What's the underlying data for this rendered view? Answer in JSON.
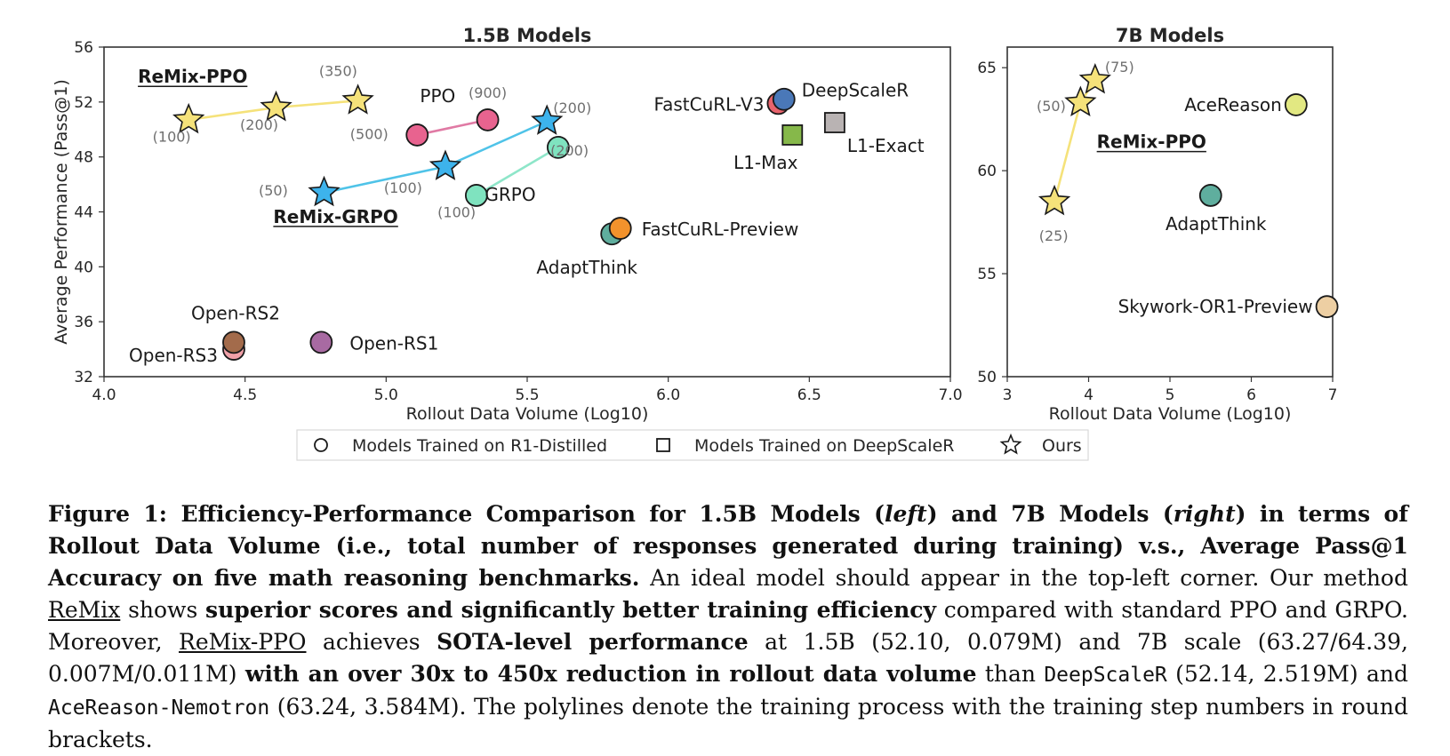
{
  "chart_data": [
    {
      "type": "scatter",
      "title": "1.5B Models",
      "xlabel": "Rollout Data Volume (Log10)",
      "ylabel": "Average Performance (Pass@1)",
      "xlim": [
        4.0,
        7.0
      ],
      "ylim": [
        32,
        56
      ],
      "xticks": [
        "4.0",
        "4.5",
        "5.0",
        "5.5",
        "6.0",
        "6.5",
        "7.0"
      ],
      "yticks": [
        "32",
        "36",
        "40",
        "44",
        "48",
        "52",
        "56"
      ],
      "grid": false,
      "lines": [
        {
          "name": "ReMix-PPO",
          "color": "#f5e27a",
          "points": [
            [
              4.3,
              50.7
            ],
            [
              4.61,
              51.6
            ],
            [
              4.9,
              52.1
            ]
          ]
        },
        {
          "name": "PPO",
          "color": "#e07aa4",
          "points": [
            [
              5.11,
              49.6
            ],
            [
              5.36,
              50.7
            ]
          ]
        },
        {
          "name": "ReMix-GRPO",
          "color": "#4fc3e8",
          "points": [
            [
              4.78,
              45.4
            ],
            [
              5.21,
              47.3
            ],
            [
              5.57,
              50.6
            ]
          ]
        },
        {
          "name": "GRPO",
          "color": "#8ee6c9",
          "points": [
            [
              5.32,
              45.2
            ],
            [
              5.61,
              48.7
            ]
          ]
        }
      ],
      "points": [
        {
          "label": "",
          "x": 4.3,
          "y": 50.7,
          "marker": "star",
          "color": "#f5e27a"
        },
        {
          "label": "",
          "x": 4.61,
          "y": 51.6,
          "marker": "star",
          "color": "#f5e27a"
        },
        {
          "label": "",
          "x": 4.9,
          "y": 52.1,
          "marker": "star",
          "color": "#f5e27a"
        },
        {
          "label": "",
          "x": 4.78,
          "y": 45.4,
          "marker": "star",
          "color": "#3db3ec"
        },
        {
          "label": "",
          "x": 5.21,
          "y": 47.3,
          "marker": "star",
          "color": "#3db3ec"
        },
        {
          "label": "",
          "x": 5.57,
          "y": 50.6,
          "marker": "star",
          "color": "#3db3ec"
        },
        {
          "label": "",
          "x": 5.11,
          "y": 49.6,
          "marker": "circle",
          "color": "#e8638f"
        },
        {
          "label": "",
          "x": 5.36,
          "y": 50.7,
          "marker": "circle",
          "color": "#e8638f"
        },
        {
          "label": "",
          "x": 5.32,
          "y": 45.2,
          "marker": "circle",
          "color": "#7fe3bf"
        },
        {
          "label": "",
          "x": 5.61,
          "y": 48.7,
          "marker": "circle",
          "color": "#7fe3bf"
        },
        {
          "label": "FastCuRL-V3",
          "x": 6.39,
          "y": 51.9,
          "marker": "circle",
          "color": "#e8636c"
        },
        {
          "label": "DeepScaleR",
          "x": 6.41,
          "y": 52.2,
          "marker": "circle",
          "color": "#4a78b8"
        },
        {
          "label": "L1-Max",
          "x": 6.44,
          "y": 49.6,
          "marker": "square",
          "color": "#86b84a"
        },
        {
          "label": "L1-Exact",
          "x": 6.59,
          "y": 50.5,
          "marker": "square",
          "color": "#b9b3b3"
        },
        {
          "label": "AdaptThink",
          "x": 5.8,
          "y": 42.4,
          "marker": "circle",
          "color": "#5fae9e"
        },
        {
          "label": "FastCuRL-Preview",
          "x": 5.83,
          "y": 42.8,
          "marker": "circle",
          "color": "#f2922c"
        },
        {
          "label": "Open-RS3",
          "x": 4.46,
          "y": 34.0,
          "marker": "circle",
          "color": "#f0a0a8"
        },
        {
          "label": "Open-RS2",
          "x": 4.46,
          "y": 34.5,
          "marker": "circle",
          "color": "#a36b4b"
        },
        {
          "label": "Open-RS1",
          "x": 4.77,
          "y": 34.5,
          "marker": "circle",
          "color": "#a86aa2"
        }
      ],
      "annotations": [
        {
          "text": "ReMix-PPO",
          "style": "underline",
          "x": 4.12,
          "y": 53.4
        },
        {
          "text": "PPO",
          "x": 5.12,
          "y": 52.0
        },
        {
          "text": "ReMix-GRPO",
          "style": "underline",
          "x": 4.6,
          "y": 43.2
        },
        {
          "text": "GRPO",
          "x": 5.35,
          "y": 44.8
        },
        {
          "text": "(100)",
          "step": true,
          "x": 4.24,
          "y": 49.1
        },
        {
          "text": "(200)",
          "step": true,
          "x": 4.55,
          "y": 50.0
        },
        {
          "text": "(350)",
          "step": true,
          "x": 4.83,
          "y": 53.9
        },
        {
          "text": "(500)",
          "step": true,
          "x": 4.94,
          "y": 49.3
        },
        {
          "text": "(900)",
          "step": true,
          "x": 5.36,
          "y": 52.3
        },
        {
          "text": "(50)",
          "step": true,
          "x": 4.6,
          "y": 45.2
        },
        {
          "text": "(100)",
          "step": true,
          "x": 5.06,
          "y": 45.4
        },
        {
          "text": "(200)",
          "step": true,
          "x": 5.66,
          "y": 51.2
        },
        {
          "text": "(100)",
          "step": true,
          "x": 5.25,
          "y": 43.6
        },
        {
          "text": "(200)",
          "step": true,
          "x": 5.65,
          "y": 48.1
        }
      ]
    },
    {
      "type": "scatter",
      "title": "7B Models",
      "xlabel": "Rollout Data Volume (Log10)",
      "ylabel": "",
      "xlim": [
        3,
        7
      ],
      "ylim": [
        50,
        66
      ],
      "xticks": [
        "3",
        "4",
        "5",
        "6",
        "7"
      ],
      "yticks": [
        "50",
        "55",
        "60",
        "65"
      ],
      "grid": false,
      "lines": [
        {
          "name": "ReMix-PPO",
          "color": "#f5e27a",
          "points": [
            [
              3.58,
              58.5
            ],
            [
              3.9,
              63.3
            ],
            [
              4.08,
              64.4
            ]
          ]
        }
      ],
      "points": [
        {
          "label": "",
          "x": 3.58,
          "y": 58.5,
          "marker": "star",
          "color": "#f5e27a"
        },
        {
          "label": "",
          "x": 3.9,
          "y": 63.3,
          "marker": "star",
          "color": "#f5e27a"
        },
        {
          "label": "",
          "x": 4.08,
          "y": 64.4,
          "marker": "star",
          "color": "#f5e27a"
        },
        {
          "label": "AceReason",
          "x": 6.55,
          "y": 63.2,
          "marker": "circle",
          "color": "#e2e882"
        },
        {
          "label": "AdaptThink",
          "x": 5.5,
          "y": 58.8,
          "marker": "circle",
          "color": "#5fae9e"
        },
        {
          "label": "Skywork-OR1-Preview",
          "x": 6.93,
          "y": 53.4,
          "marker": "circle",
          "color": "#edcfa3"
        }
      ],
      "annotations": [
        {
          "text": "ReMix-PPO",
          "style": "underline",
          "x": 4.1,
          "y": 61.1
        },
        {
          "text": "(75)",
          "step": true,
          "x": 4.38,
          "y": 64.8
        },
        {
          "text": "(50)",
          "step": true,
          "x": 3.54,
          "y": 62.9
        },
        {
          "text": "(25)",
          "step": true,
          "x": 3.57,
          "y": 56.6
        }
      ]
    }
  ],
  "legend": {
    "placement": "bottom-center",
    "items": [
      {
        "label": "Models Trained on R1-Distilled",
        "marker": "circle"
      },
      {
        "label": "Models Trained on DeepScaleR",
        "marker": "square"
      },
      {
        "label": "Ours",
        "marker": "star"
      }
    ]
  },
  "caption": {
    "figure_label": "Figure 1:",
    "bold_1": "Efficiency-Performance Comparison for 1.5B Models (",
    "bold_left": "left",
    "bold_2": ") and 7B Models (",
    "bold_right": "right",
    "bold_3": ") in terms of Rollout Data Volume (i.e., total number of responses generated during training) v.s., Average Pass@1 Accuracy on five math reasoning benchmarks.",
    "text_1": "An ideal model should appear in the top-left corner. Our method",
    "u_remix": "ReMix",
    "text_2": "shows",
    "bold_4": "superior scores and significantly better training efficiency",
    "text_3": "compared with standard PPO and GRPO. Moreover,",
    "u_remix_ppo": "ReMix-PPO",
    "text_4": "achieves",
    "bold_5": "SOTA-level performance",
    "text_5": "at 1.5B (52.10, 0.079M) and 7B scale (63.27/64.39, 0.007M/0.011M)",
    "bold_6": "with an over 30x to 450x reduction in rollout data volume",
    "text_6": "than",
    "mono_1": "DeepScaleR",
    "text_7": "(52.14, 2.519M) and",
    "mono_2": "AceReason-Nemotron",
    "text_8": "(63.24, 3.584M). The polylines denote the training process with the training step numbers in round brackets."
  }
}
